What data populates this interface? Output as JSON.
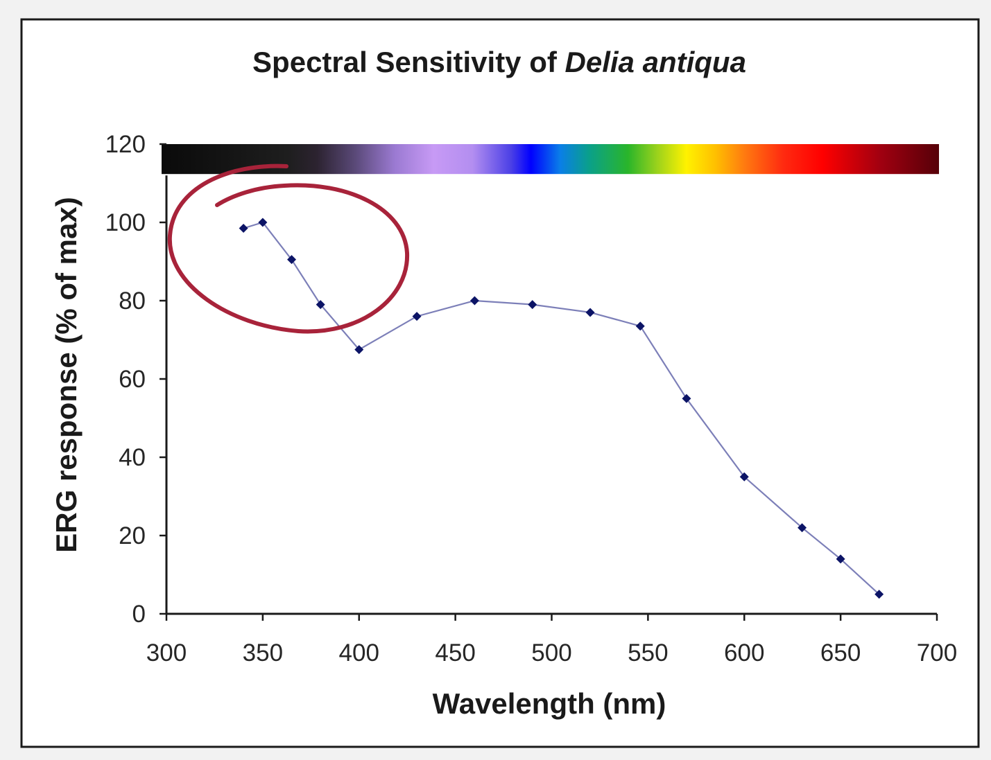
{
  "chart_data": {
    "type": "line",
    "title": {
      "prefix": "Spectral Sensitivity of ",
      "species": "Delia antiqua"
    },
    "xlabel": "Wavelength (nm)",
    "ylabel": "ERG response (% of max)",
    "xlim": [
      300,
      700
    ],
    "ylim": [
      0,
      120
    ],
    "xticks": [
      300,
      350,
      400,
      450,
      500,
      550,
      600,
      650,
      700
    ],
    "yticks": [
      0,
      20,
      40,
      60,
      80,
      100,
      120
    ],
    "grid": false,
    "legend": "none",
    "series": [
      {
        "color": "#7c7fb8",
        "marker_color": "#0c1466",
        "x": [
          340,
          350,
          365,
          380,
          400,
          430,
          460,
          490,
          520,
          546,
          570,
          600,
          630,
          650,
          670
        ],
        "y": [
          98.5,
          100,
          90.5,
          79,
          67.5,
          76,
          80,
          79,
          77,
          73.5,
          55,
          35,
          22,
          14,
          5
        ]
      }
    ],
    "spectrum_band": {
      "y_range": [
        112,
        120
      ],
      "stops": [
        {
          "x": 300,
          "color": "#0a0a0a"
        },
        {
          "x": 365,
          "color": "#1e1e1e"
        },
        {
          "x": 380,
          "color": "#2c2330"
        },
        {
          "x": 400,
          "color": "#5b4a7a"
        },
        {
          "x": 420,
          "color": "#9b7ad2"
        },
        {
          "x": 440,
          "color": "#c79af5"
        },
        {
          "x": 460,
          "color": "#b38ef0"
        },
        {
          "x": 480,
          "color": "#4a3fe6"
        },
        {
          "x": 490,
          "color": "#0000ff"
        },
        {
          "x": 505,
          "color": "#0a7ee8"
        },
        {
          "x": 520,
          "color": "#0aa08a"
        },
        {
          "x": 540,
          "color": "#2ab52a"
        },
        {
          "x": 555,
          "color": "#9bd21c"
        },
        {
          "x": 570,
          "color": "#fff200"
        },
        {
          "x": 585,
          "color": "#ffbf00"
        },
        {
          "x": 600,
          "color": "#ff7a10"
        },
        {
          "x": 620,
          "color": "#ff2a10"
        },
        {
          "x": 640,
          "color": "#ff0000"
        },
        {
          "x": 670,
          "color": "#a00010"
        },
        {
          "x": 700,
          "color": "#560008"
        }
      ]
    },
    "annotation": {
      "type": "hand-drawn ellipse",
      "color": "#a8233a",
      "encloses": "points near 340–380 nm"
    }
  }
}
